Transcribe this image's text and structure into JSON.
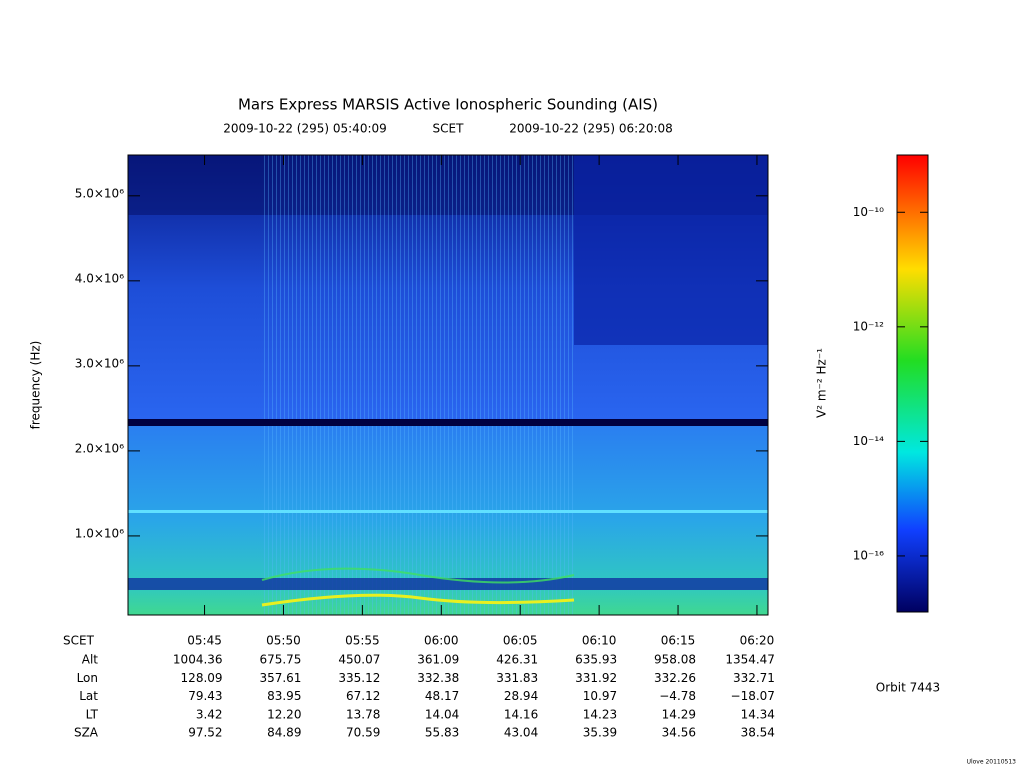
{
  "chart_data": {
    "type": "spectrogram",
    "title": "Mars Express MARSIS Active Ionospheric Sounding (AIS)",
    "start_time": "2009-10-22 (295) 05:40:09",
    "time_label": "SCET",
    "end_time": "2009-10-22 (295) 06:20:08",
    "ylabel": "frequency (Hz)",
    "ylim": [
      70000,
      5480000
    ],
    "yticks": [
      {
        "value": 1000000,
        "label": "1.0×10⁶"
      },
      {
        "value": 2000000,
        "label": "2.0×10⁶"
      },
      {
        "value": 3000000,
        "label": "3.0×10⁶"
      },
      {
        "value": 4000000,
        "label": "4.0×10⁶"
      },
      {
        "value": 5000000,
        "label": "5.0×10⁶"
      }
    ],
    "xlim": [
      340.15,
      380.7
    ],
    "xticks": [
      {
        "value": 345,
        "label": "05:45"
      },
      {
        "value": 350,
        "label": "05:50"
      },
      {
        "value": 355,
        "label": "05:55"
      },
      {
        "value": 360,
        "label": "06:00"
      },
      {
        "value": 365,
        "label": "06:05"
      },
      {
        "value": 370,
        "label": "06:10"
      },
      {
        "value": 375,
        "label": "06:15"
      },
      {
        "value": 380,
        "label": "06:20"
      }
    ],
    "ephemeris_label": "SCET",
    "ephemeris": [
      {
        "name": "Alt",
        "values": [
          "1004.36",
          "675.75",
          "450.07",
          "361.09",
          "426.31",
          "635.93",
          "958.08",
          "1354.47"
        ]
      },
      {
        "name": "Lon",
        "values": [
          "128.09",
          "357.61",
          "335.12",
          "332.38",
          "331.83",
          "331.92",
          "332.26",
          "332.71"
        ]
      },
      {
        "name": "Lat",
        "values": [
          "79.43",
          "83.95",
          "67.12",
          "48.17",
          "28.94",
          "10.97",
          "−4.78",
          "−18.07"
        ]
      },
      {
        "name": "LT",
        "values": [
          "3.42",
          "12.20",
          "13.78",
          "14.04",
          "14.16",
          "14.23",
          "14.29",
          "14.34"
        ]
      },
      {
        "name": "SZA",
        "values": [
          "97.52",
          "84.89",
          "70.59",
          "55.83",
          "43.04",
          "35.39",
          "34.56",
          "38.54"
        ]
      }
    ],
    "colorbar": {
      "label": "V² m⁻² Hz⁻¹",
      "log": true,
      "lim": [
        1.05e-17,
        1e-09
      ],
      "ticks": [
        {
          "value": 1e-10,
          "label": "10⁻¹⁰"
        },
        {
          "value": 1e-12,
          "label": "10⁻¹²"
        },
        {
          "value": 1e-14,
          "label": "10⁻¹⁴"
        },
        {
          "value": 1e-16,
          "label": "10⁻¹⁶"
        }
      ]
    },
    "orbit": "Orbit 7443",
    "credit": "Ulove 20110513"
  }
}
